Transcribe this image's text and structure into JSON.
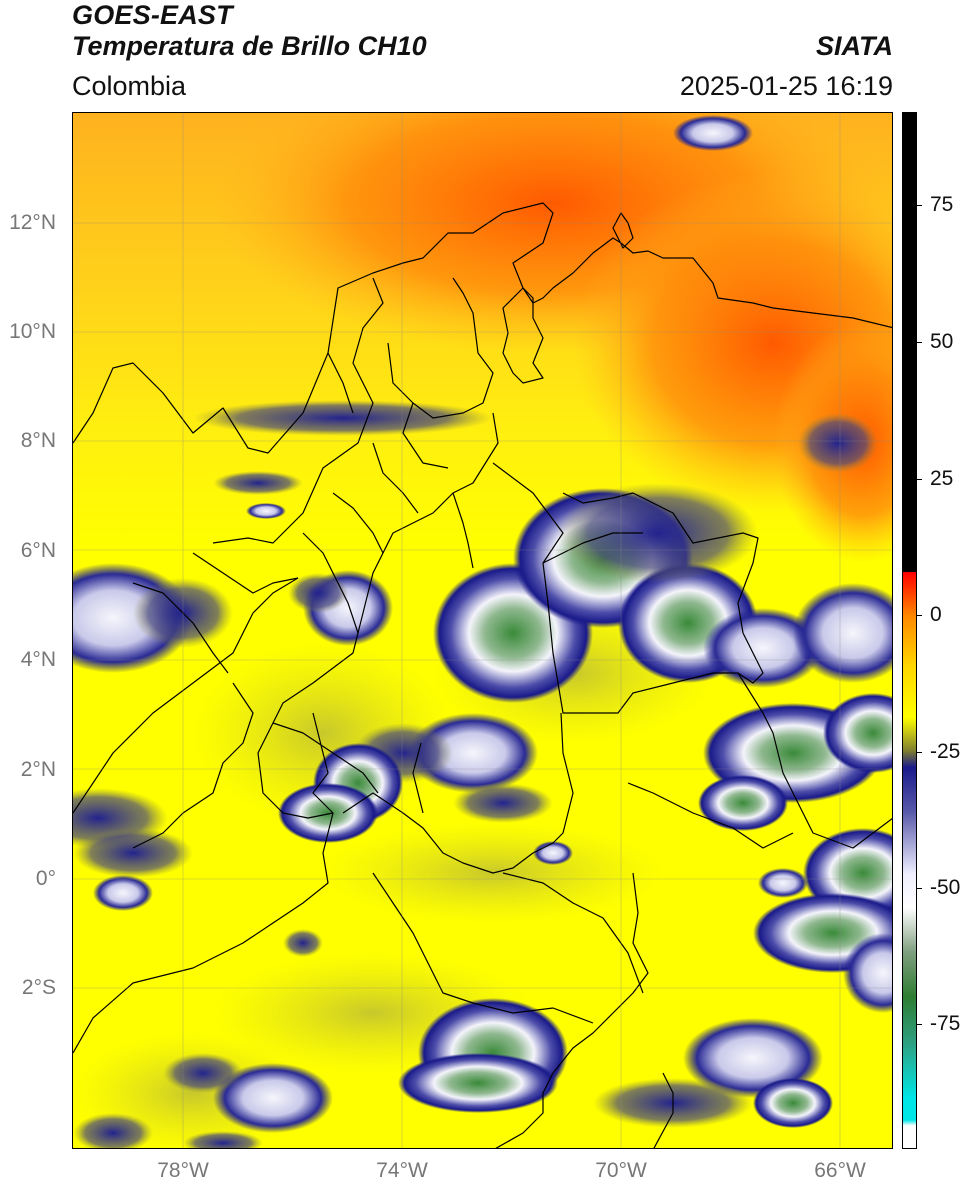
{
  "header": {
    "satellite": "GOES-EAST",
    "product": "Temperatura de Brillo CH10",
    "source": "SIATA",
    "region": "Colombia",
    "datetime": "2025-01-25 16:19"
  },
  "axes": {
    "lat_labels": [
      "12°N",
      "10°N",
      "8°N",
      "6°N",
      "4°N",
      "2°N",
      "0°",
      "2°S"
    ],
    "lon_labels": [
      "78°W",
      "74°W",
      "70°W",
      "66°W"
    ]
  },
  "colorbar": {
    "labels": [
      "75",
      "50",
      "25",
      "0",
      "-25",
      "-50",
      "-75"
    ],
    "stops": [
      {
        "value": 90,
        "color": "#000000"
      },
      {
        "value": 8,
        "color": "#000000"
      },
      {
        "value": 7.9,
        "color": "#ff0000"
      },
      {
        "value": 0,
        "color": "#ff8a00"
      },
      {
        "value": -9,
        "color": "#ffd700"
      },
      {
        "value": -18,
        "color": "#ffff00"
      },
      {
        "value": -24,
        "color": "#7f7f2f"
      },
      {
        "value": -27,
        "color": "#1a1a8c"
      },
      {
        "value": -35,
        "color": "#5a5aaa"
      },
      {
        "value": -46,
        "color": "#eeeeff"
      },
      {
        "value": -52,
        "color": "#ffffff"
      },
      {
        "value": -60,
        "color": "#7f9f7f"
      },
      {
        "value": -68,
        "color": "#2e7d32"
      },
      {
        "value": -76,
        "color": "#2e9f7f"
      },
      {
        "value": -86,
        "color": "#00e5e5"
      },
      {
        "value": -90,
        "color": "#00e5e5"
      },
      {
        "value": -91,
        "color": "#ffffff"
      },
      {
        "value": -95,
        "color": "#ffffff"
      }
    ]
  },
  "colors": {
    "warm_orange": "#ff6a00",
    "orange": "#ff9a1a",
    "yellow": "#ffff00",
    "olive": "#c9c94a",
    "navy": "#1b1b8f",
    "cloud_white": "#f2f2f8",
    "cloud_green": "#3d8a3d"
  }
}
